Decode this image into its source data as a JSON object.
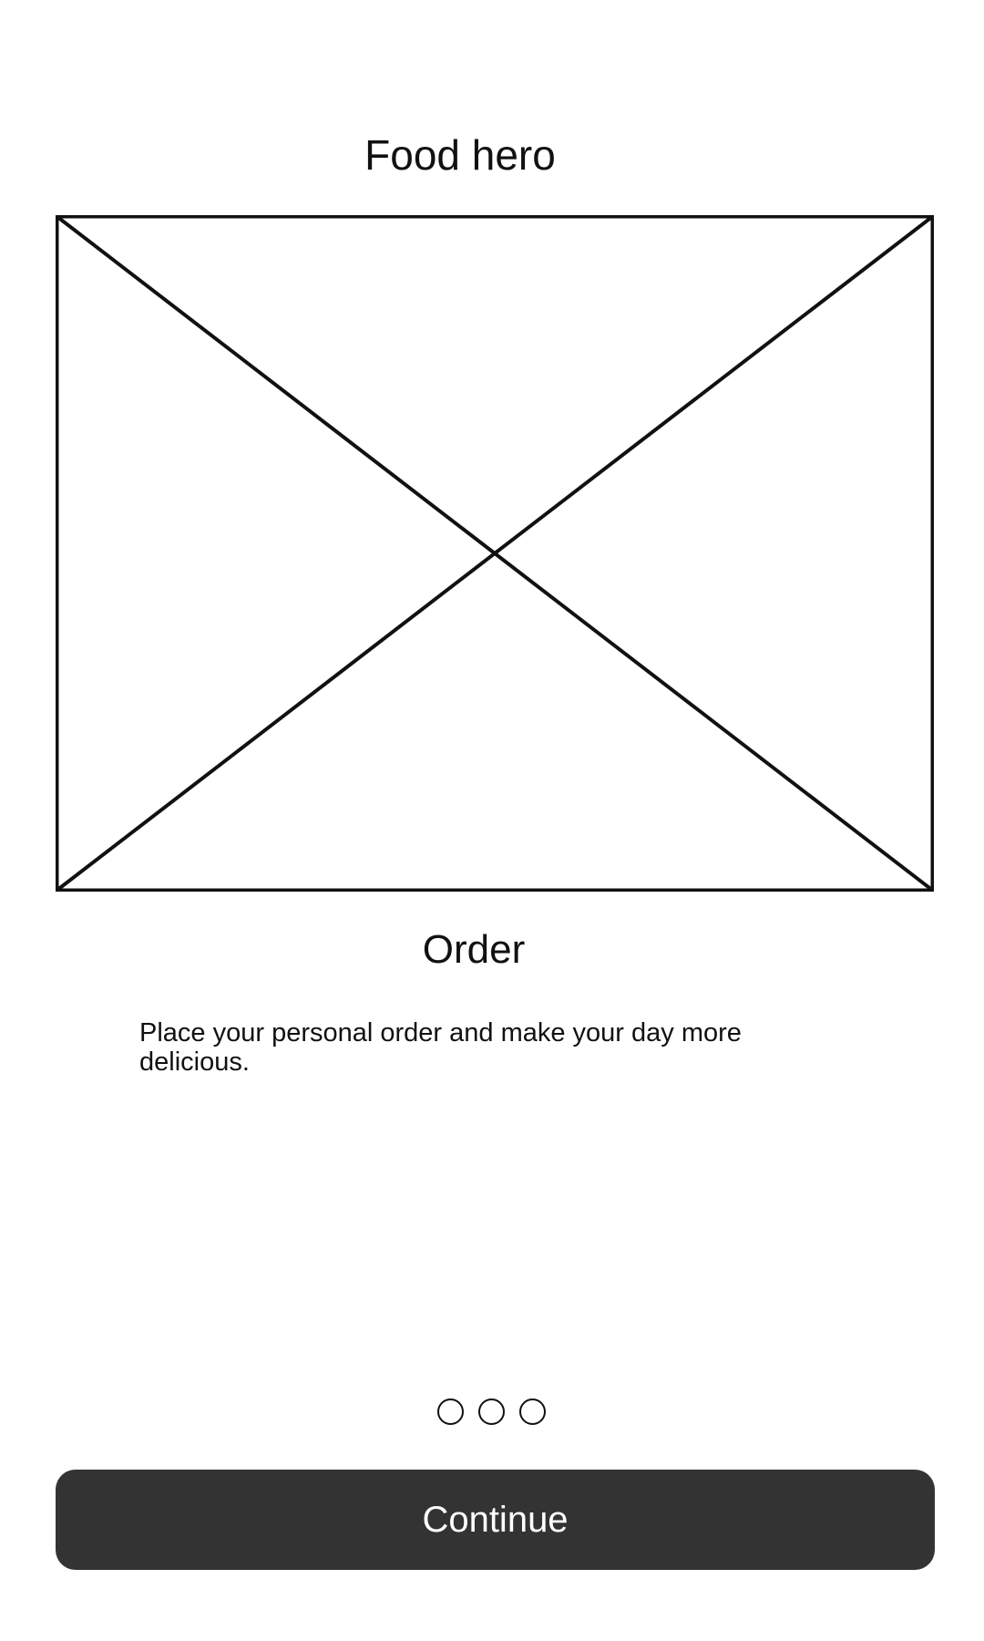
{
  "header": {
    "title": "Food hero"
  },
  "hero": {
    "icon": "image-placeholder-icon"
  },
  "onboarding": {
    "title": "Order",
    "description": "Place your personal order and make your day more delicious."
  },
  "pagination": {
    "total_pages": 3,
    "icon": "page-dot-icon"
  },
  "actions": {
    "continue_label": "Continue"
  },
  "colors": {
    "button_background": "#333333",
    "button_text": "#ffffff",
    "text": "#111111",
    "background": "#ffffff"
  }
}
